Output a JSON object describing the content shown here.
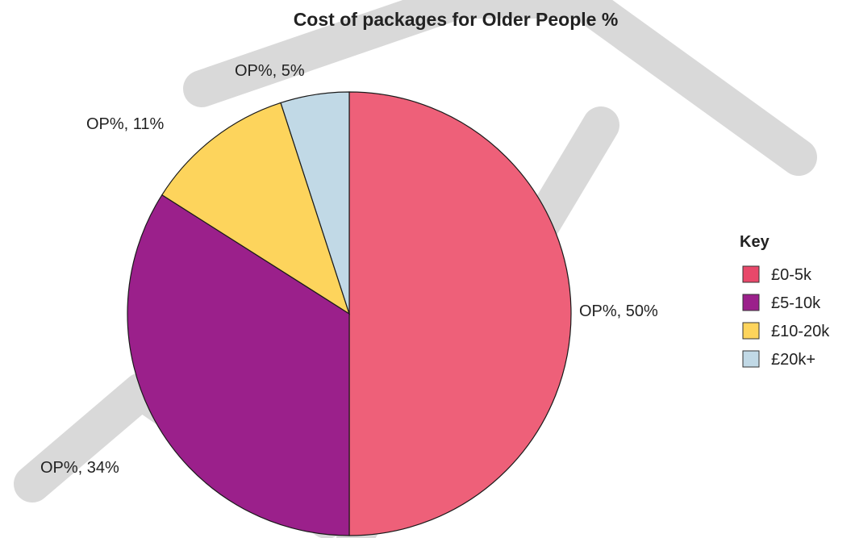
{
  "chart_data": {
    "type": "pie",
    "title": "Cost of packages for Older People %",
    "slices": [
      {
        "category": "£0-5k",
        "value": 50,
        "label": "OP%, 50%",
        "color": "#ee6079"
      },
      {
        "category": "£5-10k",
        "value": 34,
        "label": "OP%, 34%",
        "color": "#9b208b"
      },
      {
        "category": "£10-20k",
        "value": 11,
        "label": "OP%, 11%",
        "color": "#fdd45c"
      },
      {
        "category": "£20k+",
        "value": 5,
        "label": "OP%, 5%",
        "color": "#c1d9e6"
      }
    ],
    "legend": {
      "title": "Key",
      "position": "right",
      "items": [
        {
          "label": "£0-5k",
          "color": "#e8486a"
        },
        {
          "label": "£5-10k",
          "color": "#9b208b"
        },
        {
          "label": "£10-20k",
          "color": "#fdd45c"
        },
        {
          "label": "£20k+",
          "color": "#c1d9e6"
        }
      ]
    },
    "start_angle": "12 o'clock",
    "direction": "clockwise"
  }
}
